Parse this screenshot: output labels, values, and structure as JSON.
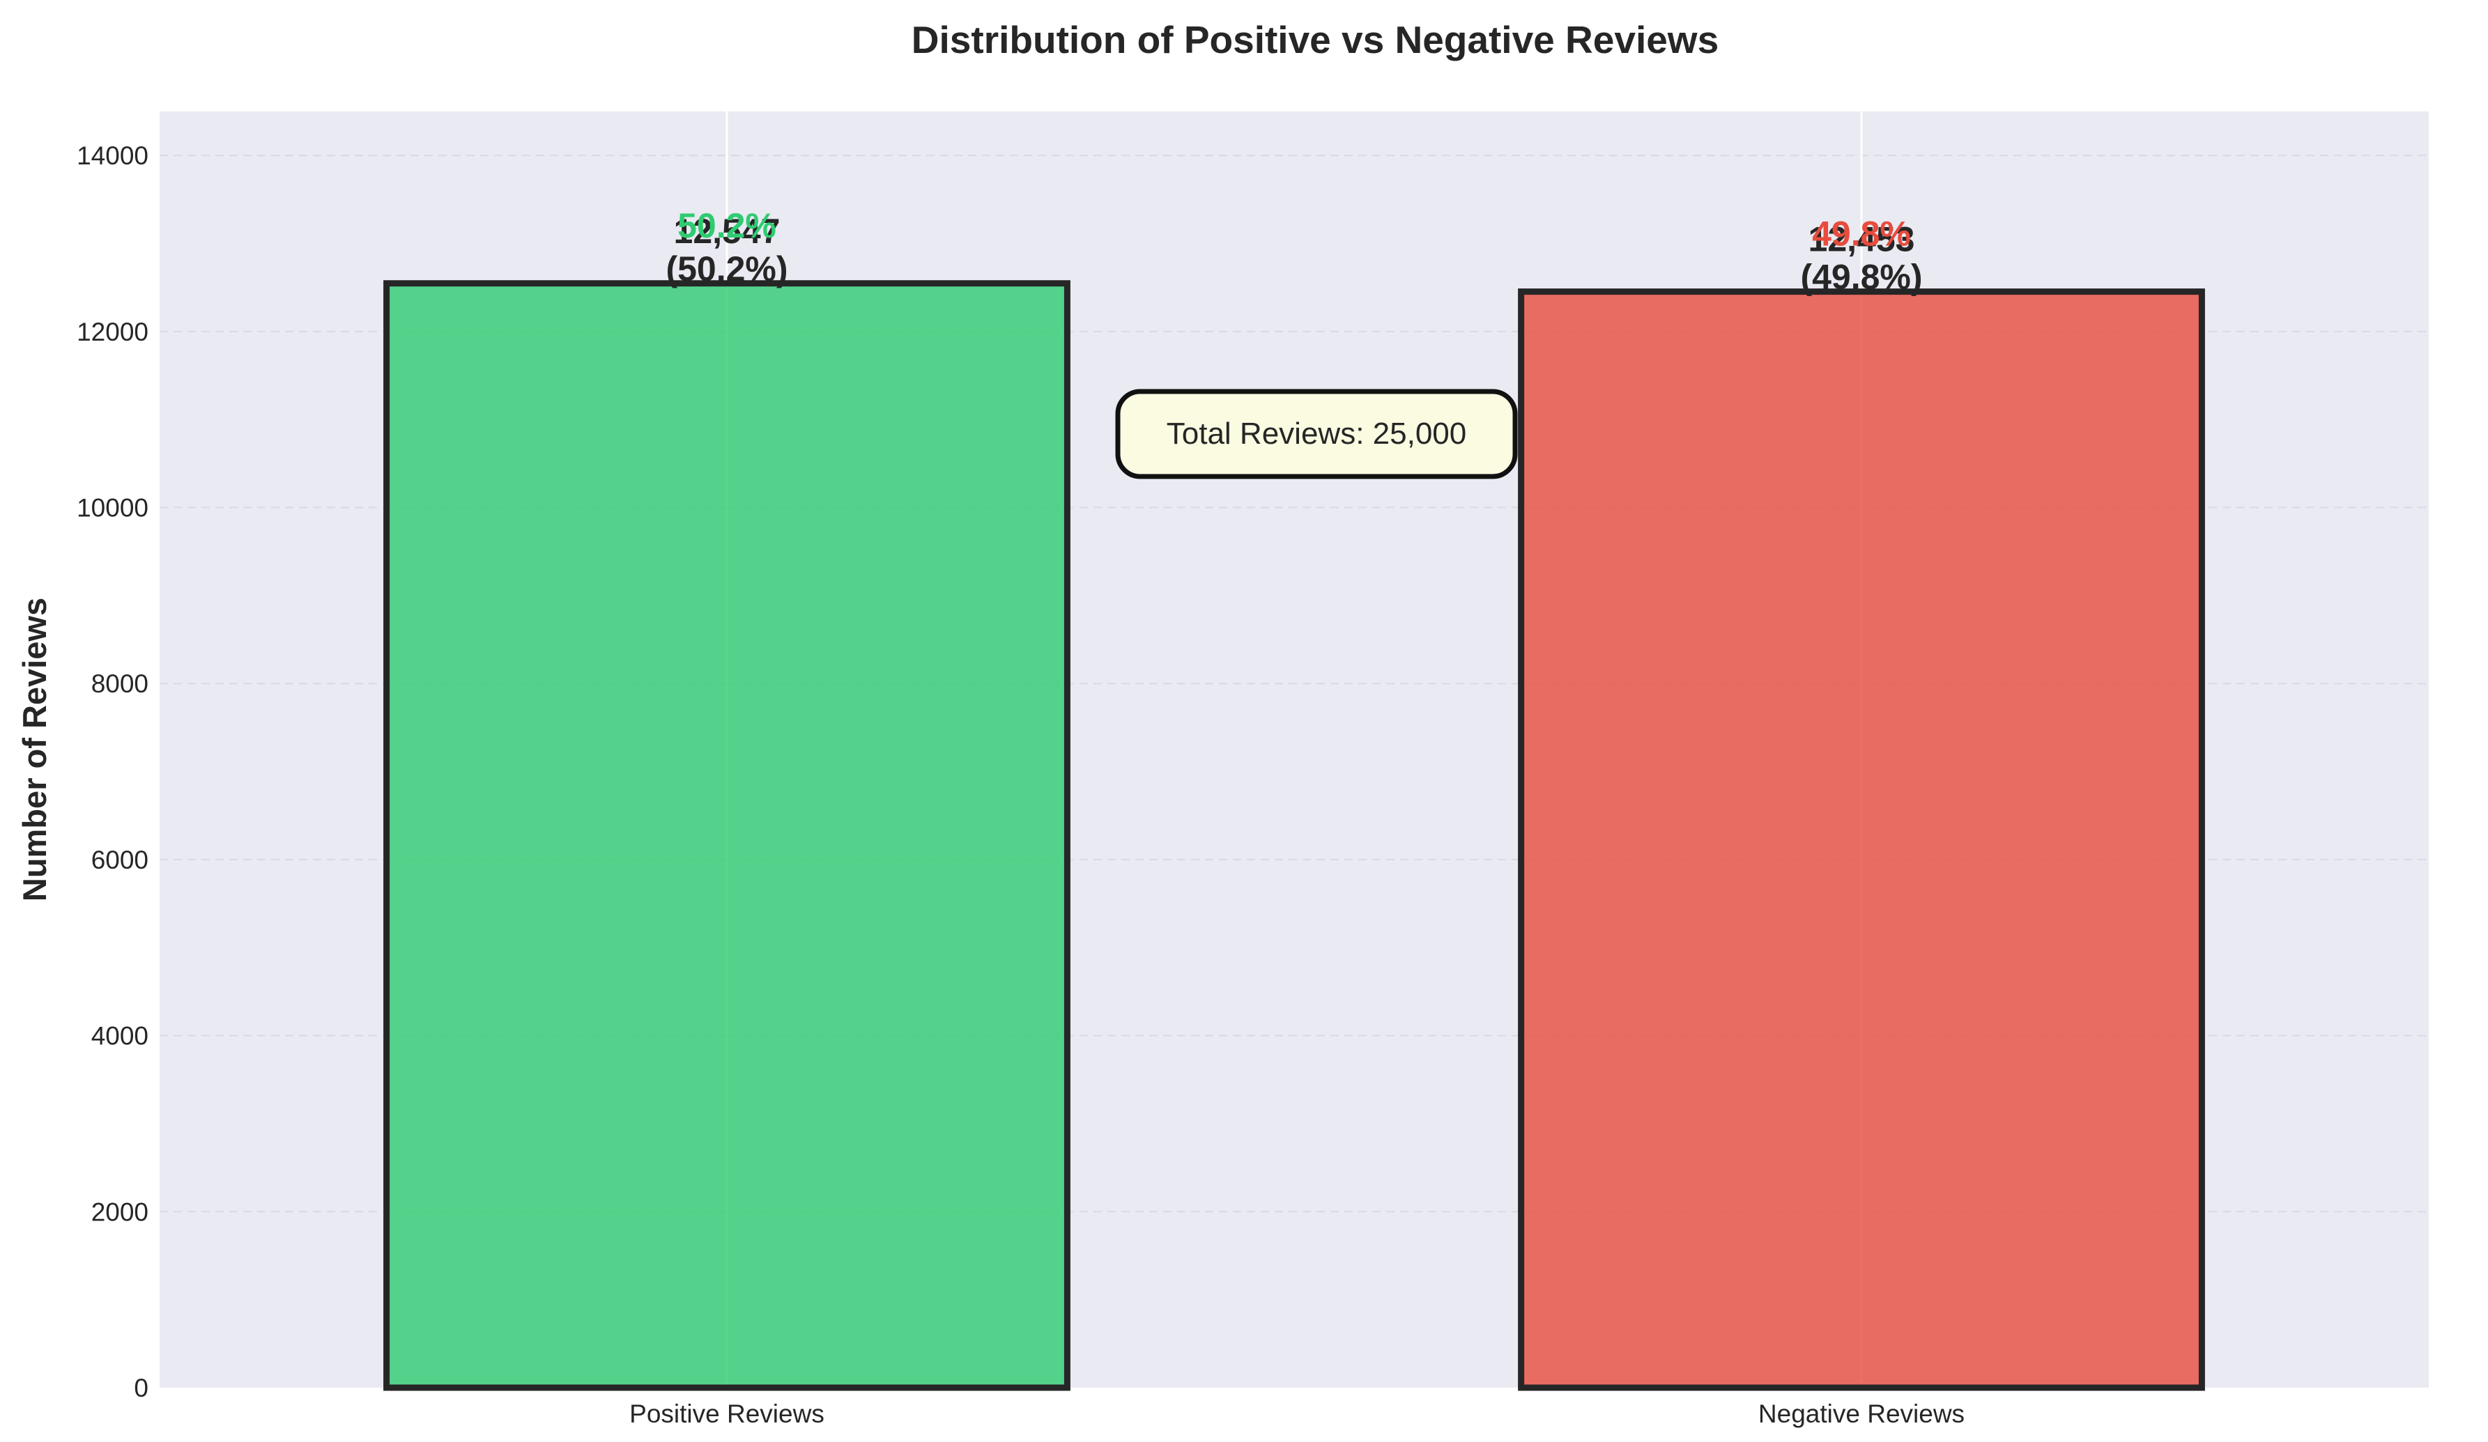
{
  "chart_data": {
    "type": "bar",
    "title": "Distribution of Positive vs Negative Reviews",
    "xlabel": "",
    "ylabel": "Number of Reviews",
    "ylim": [
      0,
      14500
    ],
    "yticks": [
      0,
      2000,
      4000,
      6000,
      8000,
      10000,
      12000,
      14000
    ],
    "categories": [
      "Positive Reviews",
      "Negative Reviews"
    ],
    "values": [
      12547,
      12453
    ],
    "colors": [
      "#2ecc71",
      "#e74c3c"
    ],
    "bar_labels": [
      "12,547",
      "12,453"
    ],
    "bar_pct_labels": [
      "(50.2%)",
      "(49.8%)"
    ],
    "overlay_pct_labels": [
      "50.2%",
      "49.8%"
    ],
    "annotation": "Total Reviews: 25,000",
    "grid": true,
    "plot_background": "#eaeaf2"
  }
}
